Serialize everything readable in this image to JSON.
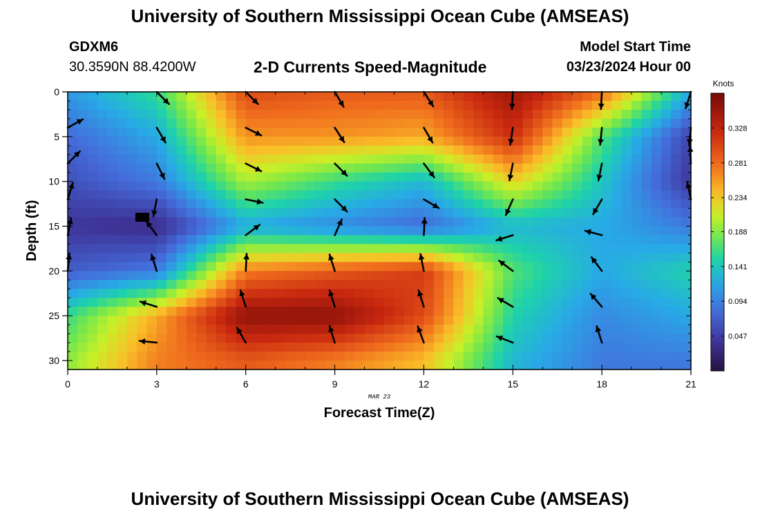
{
  "header": {
    "title": "University of Southern Mississippi Ocean Cube (AMSEAS)",
    "station": "GDXM6",
    "latlon": "30.3590N  88.4200W",
    "subtitle": "2-D Currents Speed-Magnitude",
    "start_label": "Model Start Time",
    "start_value": "03/23/2024 Hour 00"
  },
  "footer": {
    "title": "University of Southern Mississippi Ocean Cube (AMSEAS)"
  },
  "chart_data": {
    "type": "heatmap",
    "title": "2-D Currents Speed-Magnitude",
    "xlabel": "Forecast Time(Z)",
    "ylabel": "Depth (ft)",
    "x_date_label": "MAR 23",
    "xlim": [
      0,
      21
    ],
    "ylim": [
      0,
      31
    ],
    "y_inverted": true,
    "x_ticks": [
      0,
      3,
      6,
      9,
      12,
      15,
      18,
      21
    ],
    "y_ticks": [
      0,
      5,
      10,
      15,
      20,
      25,
      30
    ],
    "colorbar": {
      "label": "Knots",
      "range": [
        0,
        0.375
      ],
      "ticks": [
        "0.047",
        "0.094",
        "0.141",
        "0.188",
        "0.234",
        "0.281",
        "0.328"
      ]
    },
    "speed_field": {
      "times": [
        0,
        3,
        6,
        9,
        12,
        15,
        18,
        21
      ],
      "depths": [
        0,
        5,
        10,
        15,
        20,
        25,
        30
      ],
      "values_knots": [
        [
          0.11,
          0.16,
          0.3,
          0.29,
          0.29,
          0.35,
          0.28,
          0.12
        ],
        [
          0.08,
          0.12,
          0.26,
          0.26,
          0.25,
          0.32,
          0.17,
          0.05
        ],
        [
          0.06,
          0.09,
          0.2,
          0.16,
          0.13,
          0.23,
          0.14,
          0.04
        ],
        [
          0.04,
          0.03,
          0.12,
          0.1,
          0.08,
          0.13,
          0.12,
          0.09
        ],
        [
          0.07,
          0.09,
          0.27,
          0.29,
          0.31,
          0.17,
          0.12,
          0.15
        ],
        [
          0.16,
          0.25,
          0.36,
          0.36,
          0.3,
          0.15,
          0.1,
          0.12
        ],
        [
          0.19,
          0.27,
          0.29,
          0.27,
          0.24,
          0.13,
          0.09,
          0.09
        ]
      ]
    },
    "current_vectors": [
      {
        "t": 0,
        "depth": 4,
        "u": 0.9,
        "v": 0.5
      },
      {
        "t": 0,
        "depth": 8,
        "u": 0.7,
        "v": 0.7
      },
      {
        "t": 0,
        "depth": 12,
        "u": 0.3,
        "v": 0.95
      },
      {
        "t": 0,
        "depth": 16,
        "u": 0.2,
        "v": 1.0
      },
      {
        "t": 0,
        "depth": 20,
        "u": 0.1,
        "v": 1.0
      },
      {
        "t": 3,
        "depth": 0,
        "u": 0.7,
        "v": -0.7
      },
      {
        "t": 3,
        "depth": 4,
        "u": 0.5,
        "v": -0.85
      },
      {
        "t": 3,
        "depth": 8,
        "u": 0.45,
        "v": -0.9
      },
      {
        "t": 3,
        "depth": 12,
        "u": -0.2,
        "v": -1.0
      },
      {
        "t": 3,
        "depth": 16,
        "u": -0.6,
        "v": 0.8
      },
      {
        "t": 3,
        "depth": 20,
        "u": -0.3,
        "v": 0.95
      },
      {
        "t": 3,
        "depth": 24,
        "u": -0.95,
        "v": 0.3
      },
      {
        "t": 3,
        "depth": 28,
        "u": -1.0,
        "v": 0.1
      },
      {
        "t": 6,
        "depth": 0,
        "u": 0.7,
        "v": -0.7
      },
      {
        "t": 6,
        "depth": 4,
        "u": 0.9,
        "v": -0.45
      },
      {
        "t": 6,
        "depth": 8,
        "u": 0.9,
        "v": -0.45
      },
      {
        "t": 6,
        "depth": 12,
        "u": 1.0,
        "v": -0.2
      },
      {
        "t": 6,
        "depth": 16,
        "u": 0.8,
        "v": 0.6
      },
      {
        "t": 6,
        "depth": 20,
        "u": 0.05,
        "v": 1.0
      },
      {
        "t": 6,
        "depth": 24,
        "u": -0.3,
        "v": 0.95
      },
      {
        "t": 6,
        "depth": 28,
        "u": -0.5,
        "v": 0.85
      },
      {
        "t": 9,
        "depth": 0,
        "u": 0.5,
        "v": -0.85
      },
      {
        "t": 9,
        "depth": 4,
        "u": 0.55,
        "v": -0.85
      },
      {
        "t": 9,
        "depth": 8,
        "u": 0.7,
        "v": -0.7
      },
      {
        "t": 9,
        "depth": 12,
        "u": 0.7,
        "v": -0.7
      },
      {
        "t": 9,
        "depth": 16,
        "u": 0.4,
        "v": 0.9
      },
      {
        "t": 9,
        "depth": 20,
        "u": -0.3,
        "v": 0.95
      },
      {
        "t": 9,
        "depth": 24,
        "u": -0.3,
        "v": 0.95
      },
      {
        "t": 9,
        "depth": 28,
        "u": -0.3,
        "v": 0.95
      },
      {
        "t": 12,
        "depth": 0,
        "u": 0.55,
        "v": -0.85
      },
      {
        "t": 12,
        "depth": 4,
        "u": 0.5,
        "v": -0.85
      },
      {
        "t": 12,
        "depth": 8,
        "u": 0.6,
        "v": -0.8
      },
      {
        "t": 12,
        "depth": 12,
        "u": 0.85,
        "v": -0.5
      },
      {
        "t": 12,
        "depth": 16,
        "u": 0.05,
        "v": 1.0
      },
      {
        "t": 12,
        "depth": 20,
        "u": -0.2,
        "v": 1.0
      },
      {
        "t": 12,
        "depth": 24,
        "u": -0.3,
        "v": 0.95
      },
      {
        "t": 12,
        "depth": 28,
        "u": -0.35,
        "v": 0.95
      },
      {
        "t": 15,
        "depth": 0,
        "u": -0.05,
        "v": -1.0
      },
      {
        "t": 15,
        "depth": 4,
        "u": -0.15,
        "v": -1.0
      },
      {
        "t": 15,
        "depth": 8,
        "u": -0.2,
        "v": -1.0
      },
      {
        "t": 15,
        "depth": 12,
        "u": -0.4,
        "v": -0.9
      },
      {
        "t": 15,
        "depth": 16,
        "u": -0.95,
        "v": -0.3
      },
      {
        "t": 15,
        "depth": 20,
        "u": -0.8,
        "v": 0.6
      },
      {
        "t": 15,
        "depth": 24,
        "u": -0.85,
        "v": 0.5
      },
      {
        "t": 15,
        "depth": 28,
        "u": -0.9,
        "v": 0.35
      },
      {
        "t": 18,
        "depth": 0,
        "u": -0.05,
        "v": -1.0
      },
      {
        "t": 18,
        "depth": 4,
        "u": -0.1,
        "v": -1.0
      },
      {
        "t": 18,
        "depth": 8,
        "u": -0.2,
        "v": -1.0
      },
      {
        "t": 18,
        "depth": 12,
        "u": -0.5,
        "v": -0.85
      },
      {
        "t": 18,
        "depth": 16,
        "u": -0.95,
        "v": 0.25
      },
      {
        "t": 18,
        "depth": 20,
        "u": -0.6,
        "v": 0.8
      },
      {
        "t": 18,
        "depth": 24,
        "u": -0.65,
        "v": 0.75
      },
      {
        "t": 18,
        "depth": 28,
        "u": -0.3,
        "v": 0.95
      },
      {
        "t": 21,
        "depth": 0,
        "u": -0.3,
        "v": -0.95
      },
      {
        "t": 21,
        "depth": 4,
        "u": -0.1,
        "v": -1.0
      },
      {
        "t": 21,
        "depth": 8,
        "u": -0.05,
        "v": 1.0
      },
      {
        "t": 21,
        "depth": 12,
        "u": -0.2,
        "v": 0.95
      }
    ]
  }
}
